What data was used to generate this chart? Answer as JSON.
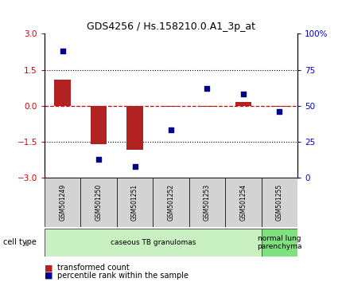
{
  "title": "GDS4256 / Hs.158210.0.A1_3p_at",
  "samples": [
    "GSM501249",
    "GSM501250",
    "GSM501251",
    "GSM501252",
    "GSM501253",
    "GSM501254",
    "GSM501255"
  ],
  "transformed_count": [
    1.1,
    -1.6,
    -1.85,
    -0.05,
    -0.05,
    0.15,
    -0.05
  ],
  "percentile_rank": [
    88,
    13,
    8,
    33,
    62,
    58,
    46
  ],
  "ylim_left": [
    -3,
    3
  ],
  "ylim_right": [
    0,
    100
  ],
  "yticks_left": [
    -3,
    -1.5,
    0,
    1.5,
    3
  ],
  "yticks_right": [
    0,
    25,
    50,
    75,
    100
  ],
  "ytick_labels_right": [
    "0",
    "25",
    "50",
    "75",
    "100%"
  ],
  "bar_color": "#b22222",
  "scatter_color": "#00008b",
  "bar_width": 0.45,
  "cell_type_groups": [
    {
      "label": "caseous TB granulomas",
      "samples": [
        0,
        1,
        2,
        3,
        4,
        5
      ],
      "color": "#c8f0c0"
    },
    {
      "label": "normal lung\nparenchyma",
      "samples": [
        6
      ],
      "color": "#7ee07e"
    }
  ],
  "cell_type_label": "cell type",
  "legend_items": [
    {
      "color": "#b22222",
      "label": "transformed count"
    },
    {
      "color": "#00008b",
      "label": "percentile rank within the sample"
    }
  ],
  "tick_label_color_left": "#cc0000",
  "tick_label_color_right": "#0000cc",
  "bg_color": "#ffffff",
  "plot_bg_color": "#ffffff",
  "dashed_zero_color": "#cc0000",
  "xlabel_bg_color": "#d3d3d3",
  "title_fontsize": 9
}
